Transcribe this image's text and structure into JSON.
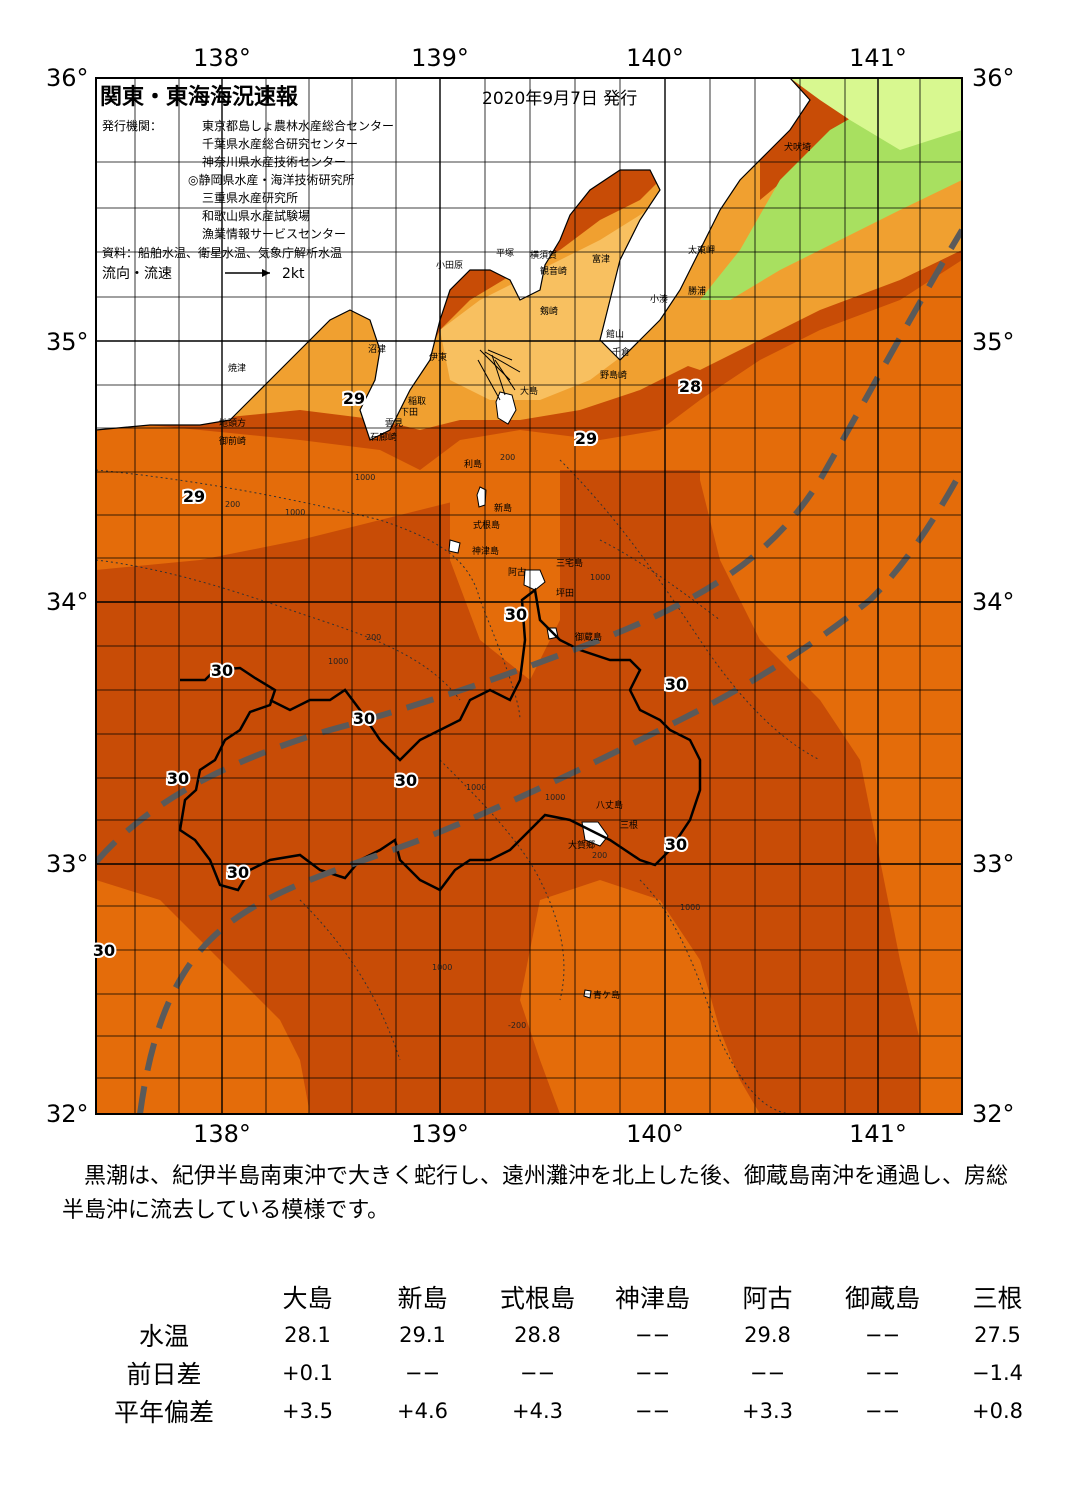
{
  "map": {
    "title": "関東・東海海況速報",
    "issue_date": "2020年9月7日 発行",
    "agencies_label": "発行機関：",
    "agencies": [
      "東京都島しょ農林水産総合センター",
      "千葉県水産総合研究センター",
      "神奈川県水産技術センター",
      "◎静岡県水産・海洋技術研究所",
      "三重県水産研究所",
      "和歌山県水産試験場",
      "漁業情報サービスセンター"
    ],
    "source": "資料：船舶水温、衛星水温、気象庁解析水温",
    "flow_legend": "流向・流速",
    "flow_unit": "2kt",
    "lon_labels": [
      "138°",
      "139°",
      "140°",
      "141°"
    ],
    "lat_labels": [
      "36°",
      "35°",
      "34°",
      "33°",
      "32°"
    ],
    "lon_range": [
      137.5,
      141.5
    ],
    "lat_range": [
      32,
      36
    ],
    "place_names": [
      "犬吠埼",
      "太東岬",
      "勝浦",
      "小湊",
      "館山",
      "千倉",
      "野島崎",
      "富津",
      "観音崎",
      "剱崎",
      "横須賀",
      "平塚",
      "小田原",
      "大島",
      "伊東",
      "稲取",
      "下田",
      "石廊崎",
      "雲見",
      "沼津",
      "焼津",
      "地頭方",
      "御前崎",
      "利島",
      "新島",
      "式根島",
      "神津島",
      "阿古",
      "三宅島",
      "坪田",
      "御蔵島",
      "八丈島",
      "三根",
      "大賀郷",
      "青ケ島"
    ],
    "isotherm_labels": [
      "29",
      "29",
      "29",
      "28",
      "29",
      "30",
      "30",
      "30",
      "30",
      "30",
      "30",
      "30",
      "30",
      "30"
    ],
    "depth_labels": [
      "200",
      "200",
      "1000",
      "1000",
      "200",
      "1000",
      "1000",
      "1000",
      "1000",
      "1000",
      "1000",
      "200",
      "-200"
    ],
    "colors": {
      "warm_sea": "#c84c06",
      "mid_sea": "#e46c0a",
      "coast_sea": "#f0a030",
      "light_sea": "#f8c060",
      "cool_sea": "#a8e060",
      "cold_sea": "#d8f890",
      "land": "#ffffff",
      "kuroshio_line": "#5a5a5a"
    }
  },
  "description": "黒潮は、紀伊半島南東沖で大きく蛇行し、遠州灘沖を北上した後、御蔵島南沖を通過し、房総半島沖に流去している模様です。",
  "table": {
    "stations": [
      "大島",
      "新島",
      "式根島",
      "神津島",
      "阿古",
      "御蔵島",
      "三根"
    ],
    "rows": [
      {
        "label": "水温",
        "values": [
          "28.1",
          "29.1",
          "28.8",
          "−−",
          "29.8",
          "−−",
          "27.5"
        ]
      },
      {
        "label": "前日差",
        "values": [
          "+0.1",
          "−−",
          "−−",
          "−−",
          "−−",
          "−−",
          "−1.4"
        ]
      },
      {
        "label": "平年偏差",
        "values": [
          "+3.5",
          "+4.6",
          "+4.3",
          "−−",
          "+3.3",
          "−−",
          "+0.8"
        ]
      }
    ]
  }
}
